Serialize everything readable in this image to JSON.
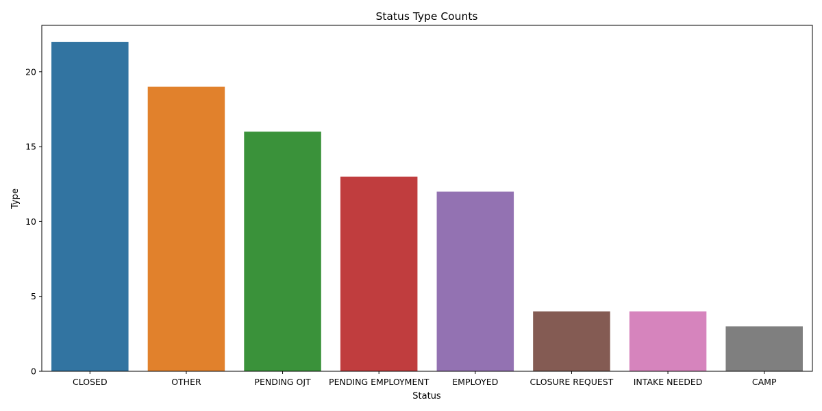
{
  "chart_data": {
    "type": "bar",
    "title": "Status Type Counts",
    "xlabel": "Status",
    "ylabel": "Type",
    "categories": [
      "CLOSED",
      "OTHER",
      "PENDING OJT",
      "PENDING EMPLOYMENT",
      "EMPLOYED",
      "CLOSURE REQUEST",
      "INTAKE NEEDED",
      "CAMP"
    ],
    "values": [
      22,
      19,
      16,
      13,
      12,
      4,
      4,
      3
    ],
    "colors": [
      "#3274a1",
      "#e1812c",
      "#3a923a",
      "#c03d3e",
      "#9372b2",
      "#845b53",
      "#d684bd",
      "#7f7f7f"
    ],
    "ylim": [
      0,
      23.1
    ],
    "yticks": [
      0,
      5,
      10,
      15,
      20
    ],
    "ytick_labels": [
      "0",
      "5",
      "10",
      "15",
      "20"
    ],
    "grid": false,
    "legend": false
  }
}
